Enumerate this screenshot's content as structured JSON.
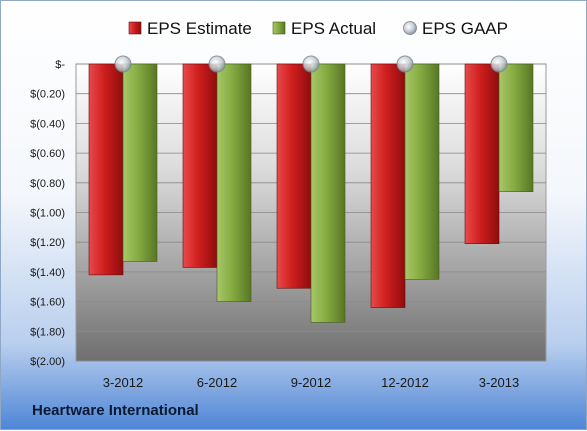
{
  "chart_data": {
    "type": "bar",
    "title": "",
    "xlabel": "",
    "ylabel": "",
    "categories": [
      "3-2012",
      "6-2012",
      "9-2012",
      "12-2012",
      "3-2013"
    ],
    "series": [
      {
        "name": "EPS Estimate",
        "values": [
          -1.42,
          -1.37,
          -1.51,
          -1.64,
          -1.21
        ]
      },
      {
        "name": "EPS Actual",
        "values": [
          -1.33,
          -1.6,
          -1.74,
          -1.45,
          -0.86
        ]
      },
      {
        "name": "EPS GAAP",
        "values": [
          0.0,
          0.0,
          0.0,
          0.0,
          0.0
        ]
      }
    ],
    "ylim": [
      -2.0,
      0.0
    ],
    "yticks": [
      0,
      -0.2,
      -0.4,
      -0.6,
      -0.8,
      -1.0,
      -1.2,
      -1.4,
      -1.6,
      -1.8,
      -2.0
    ],
    "ytick_labels": [
      "$-",
      "$(0.20)",
      "$(0.40)",
      "$(0.60)",
      "$(0.80)",
      "$(1.00)",
      "$(1.20)",
      "$(1.40)",
      "$(1.60)",
      "$(1.80)",
      "$(2.00)"
    ],
    "legend_position": "top",
    "grid": true,
    "colors": {
      "estimate": "#c81e1e",
      "actual": "#7fa33a",
      "gaap": "#b8c2cc"
    }
  },
  "footer": {
    "company": "Heartware International"
  }
}
